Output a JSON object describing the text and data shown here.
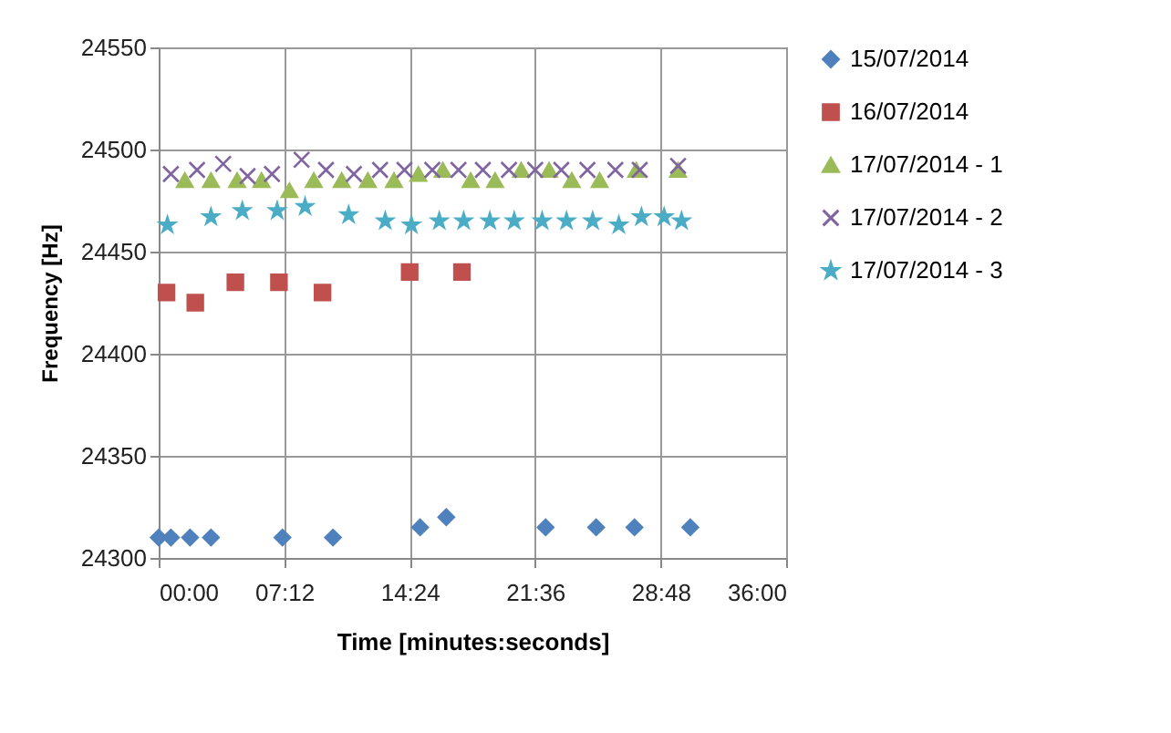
{
  "chart_data": {
    "type": "scatter",
    "xlabel": "Time [minutes:seconds]",
    "ylabel": "Frequency [Hz]",
    "xlim": [
      0,
      36
    ],
    "xticks": [
      {
        "value": 0,
        "label": "00:00"
      },
      {
        "value": 7.2,
        "label": "07:12"
      },
      {
        "value": 14.4,
        "label": "14:24"
      },
      {
        "value": 21.6,
        "label": "21:36"
      },
      {
        "value": 28.8,
        "label": "28:48"
      },
      {
        "value": 36,
        "label": "36:00"
      }
    ],
    "ylim": [
      24300,
      24550
    ],
    "yticks": [
      24300,
      24350,
      24400,
      24450,
      24500,
      24550
    ],
    "grid": true,
    "legend": "right",
    "series": [
      {
        "name": "15/07/2014",
        "color": "#4f81bd",
        "marker": "diamond",
        "x": [
          0,
          0.7,
          1.8,
          3.0,
          7.1,
          10.0,
          15.0,
          16.5,
          22.2,
          25.1,
          27.3,
          30.5
        ],
        "values": [
          24310,
          24310,
          24310,
          24310,
          24310,
          24310,
          24315,
          24320,
          24315,
          24315,
          24315,
          24315
        ]
      },
      {
        "name": "16/07/2014",
        "color": "#c0504d",
        "marker": "square",
        "x": [
          0.45,
          2.1,
          4.4,
          6.9,
          9.4,
          14.4,
          17.4
        ],
        "values": [
          24430,
          24425,
          24435,
          24435,
          24430,
          24440,
          24440
        ]
      },
      {
        "name": "17/07/2014 - 1",
        "color": "#9bbb59",
        "marker": "triangle",
        "x": [
          1.5,
          3.0,
          4.5,
          5.9,
          7.5,
          8.9,
          10.5,
          12.0,
          13.5,
          14.9,
          16.3,
          17.9,
          19.3,
          20.8,
          22.4,
          23.7,
          25.3,
          27.4,
          29.8
        ],
        "values": [
          24485,
          24485,
          24485,
          24485,
          24480,
          24485,
          24485,
          24485,
          24485,
          24488,
          24490,
          24485,
          24485,
          24490,
          24490,
          24485,
          24485,
          24490,
          24490
        ]
      },
      {
        "name": "17/07/2014 - 2",
        "color": "#8064a2",
        "marker": "cross",
        "x": [
          0.7,
          2.2,
          3.7,
          5.1,
          6.5,
          8.2,
          9.6,
          11.2,
          12.7,
          14.1,
          15.7,
          17.2,
          18.6,
          20.1,
          21.6,
          23.1,
          24.6,
          26.2,
          27.6,
          29.8
        ],
        "values": [
          24488,
          24490,
          24493,
          24487,
          24488,
          24495,
          24490,
          24488,
          24490,
          24490,
          24490,
          24490,
          24490,
          24490,
          24490,
          24490,
          24490,
          24490,
          24490,
          24492
        ]
      },
      {
        "name": "17/07/2014 - 3",
        "color": "#4bacc6",
        "marker": "star",
        "x": [
          0.5,
          3.0,
          4.8,
          6.8,
          8.4,
          10.9,
          13.0,
          14.5,
          16.1,
          17.5,
          19.0,
          20.4,
          22.0,
          23.4,
          24.9,
          26.4,
          27.7,
          29.0,
          30.0
        ],
        "values": [
          24463,
          24467,
          24470,
          24470,
          24472,
          24468,
          24465,
          24463,
          24465,
          24465,
          24465,
          24465,
          24465,
          24465,
          24465,
          24463,
          24467,
          24467,
          24465
        ]
      }
    ]
  }
}
